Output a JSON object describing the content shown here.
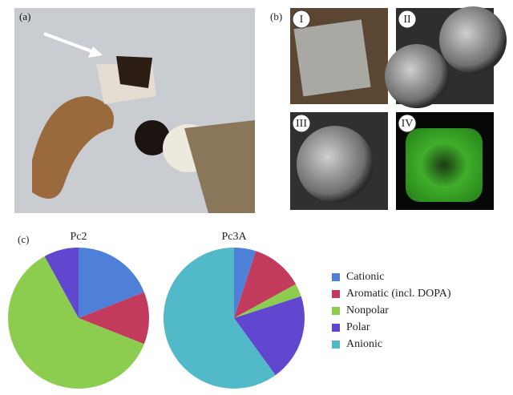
{
  "panels": {
    "a": "(a)",
    "b": "(b)",
    "c": "(c)"
  },
  "photo_labels": [
    "I",
    "II",
    "III",
    "IV"
  ],
  "chart_data": {
    "type": "pie",
    "categories": [
      "Cationic",
      "Aromatic (incl. DOPA)",
      "Nonpolar",
      "Polar",
      "Anionic"
    ],
    "colors": [
      "#4f80d8",
      "#c23a5c",
      "#8ccd4f",
      "#6147cf",
      "#52b9c9"
    ],
    "series": [
      {
        "name": "Pc2",
        "values": [
          19,
          12,
          61,
          8,
          0
        ]
      },
      {
        "name": "Pc3A",
        "values": [
          5,
          12,
          3,
          20,
          60
        ]
      }
    ]
  }
}
